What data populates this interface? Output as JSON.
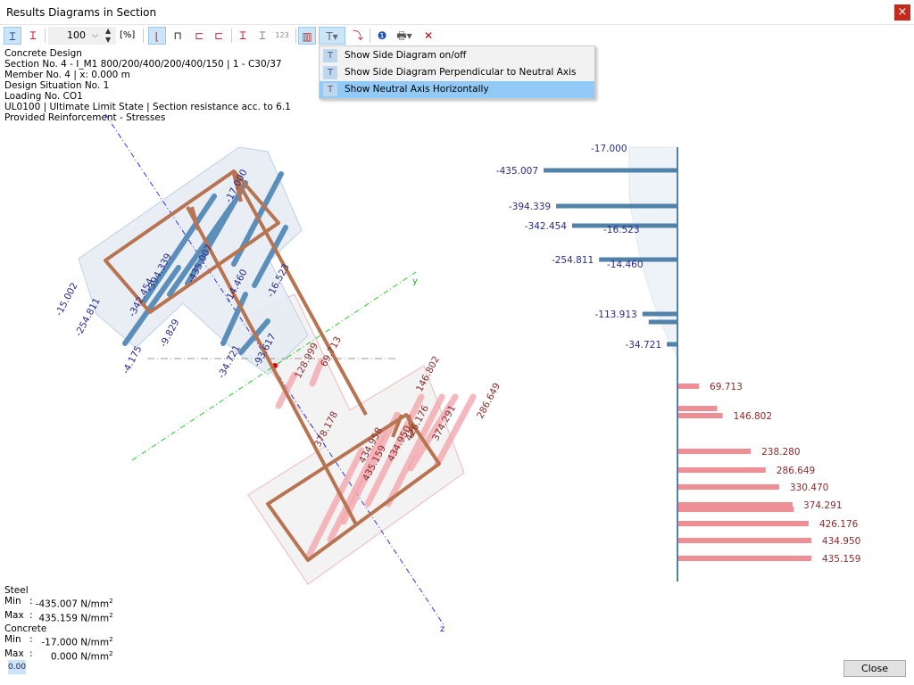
{
  "window": {
    "title": "Results Diagrams in Section",
    "close_glyph": "×"
  },
  "toolbar": {
    "zoom_value": "100",
    "zoom_unit": "[%]"
  },
  "info": [
    "Concrete Design",
    "Section No. 4 - I_M1 800/200/400/200/400/150 | 1 - C30/37",
    "Member No. 4 | x: 0.000 m",
    "Design Situation No. 1",
    "Loading No. CO1",
    "UL0100 | Ultimate Limit State | Section resistance acc. to 6.1",
    "Provided Reinforcement - Stresses"
  ],
  "menu": {
    "items": [
      {
        "label": "Show Side Diagram on/off",
        "icon": "side-diagram-icon"
      },
      {
        "label": "Show Side Diagram Perpendicular to Neutral Axis On/Off",
        "icon": "side-diagram-perpendicular-icon"
      },
      {
        "label": "Show Neutral Axis Horizontally",
        "icon": "neutral-axis-horizontal-icon",
        "highlighted": true
      }
    ]
  },
  "section_labels": {
    "blue": [
      "-17.000",
      "-435.007",
      "-394.339",
      "-342.454",
      "-254.811",
      "-15.002",
      "-4.175",
      "-9.829",
      "-16.523",
      "-14.460",
      "-34.721",
      "-93.617"
    ],
    "red": [
      "69.713",
      "128.999",
      "146.802",
      "286.649",
      "374.291",
      "378.178",
      "434.958",
      "435.159",
      "434.950",
      "426.176"
    ],
    "axes": [
      "y",
      "z"
    ]
  },
  "side_diagram": {
    "concrete_top": "-17.000",
    "steel_compression": [
      {
        "label": "-435.007",
        "value": -435.007
      },
      {
        "label": "-394.339",
        "value": -394.339
      },
      {
        "label": "-342.454",
        "value": -342.454
      },
      {
        "label": "-254.811",
        "value": -254.811
      },
      {
        "label": "-113.913",
        "value": -113.913
      },
      {
        "label": "",
        "value": -93.617
      },
      {
        "label": "-34.721",
        "value": -34.721
      }
    ],
    "concrete_labels": [
      "-16.523",
      "-14.460"
    ],
    "steel_tension": [
      {
        "label": "69.713",
        "value": 69.713
      },
      {
        "label": "",
        "value": 128.999
      },
      {
        "label": "146.802",
        "value": 146.802
      },
      {
        "label": "238.280",
        "value": 238.28
      },
      {
        "label": "286.649",
        "value": 286.649
      },
      {
        "label": "330.470",
        "value": 330.47
      },
      {
        "label": "374.291",
        "value": 374.291
      },
      {
        "label": "",
        "value": 378.178
      },
      {
        "label": "426.176",
        "value": 426.176
      },
      {
        "label": "434.950",
        "value": 434.95
      },
      {
        "label": "435.159",
        "value": 435.159
      }
    ],
    "colors": {
      "compression": "#5082aa",
      "tension": "#ee8f96",
      "concrete": "#eef3f8"
    }
  },
  "stats": {
    "steel_title": "Steel",
    "concrete_title": "Concrete",
    "min_label": "Min",
    "max_label": "Max",
    "sep": ":",
    "steel_min": "-435.007 N/mm",
    "steel_max": "435.159 N/mm",
    "concrete_min": "-17.000 N/mm",
    "concrete_max": "0.000 N/mm",
    "exp": "2"
  },
  "footer": {
    "decimals_label": "0.00",
    "close_label": "Close"
  }
}
